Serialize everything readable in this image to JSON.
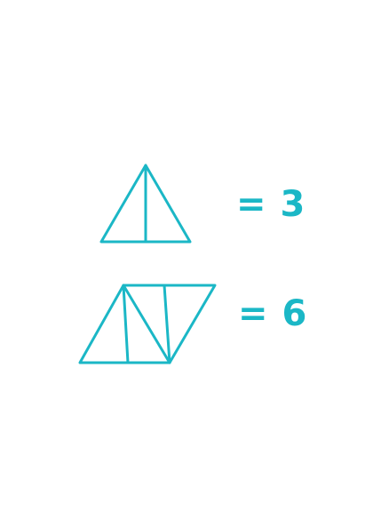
{
  "colors": {
    "accent": "#1bb7c6",
    "background": "#ffffff"
  },
  "rows": [
    {
      "answer": "= 3"
    },
    {
      "answer": "= 6"
    }
  ]
}
